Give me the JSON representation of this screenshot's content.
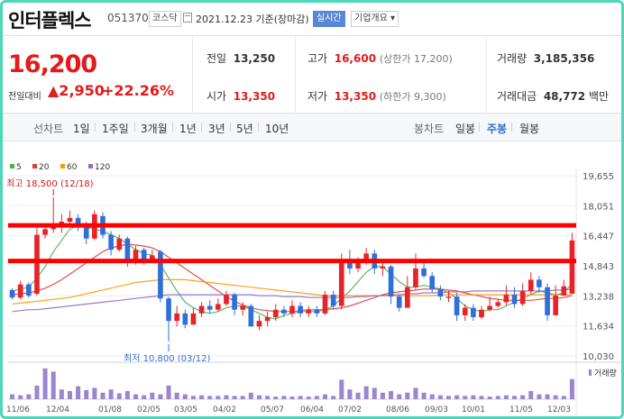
{
  "header": {
    "name": "인터플렉스",
    "code": "051370",
    "market": "코스닥",
    "date": "2021.12.23",
    "basis": "기준(장마감)",
    "realtime": "실시간",
    "overview": "기업개요 ▾"
  },
  "summary": {
    "price": "16,200",
    "change_label": "전일대비",
    "change": "▲2,950",
    "rate": "+22.26%",
    "prev_label": "전일",
    "prev": "13,250",
    "high_label": "고가",
    "high": "16,600",
    "upper_limit": "(상한가 17,200)",
    "volume_label": "거래량",
    "volume": "3,185,356",
    "open_label": "시가",
    "open": "13,350",
    "low_label": "저가",
    "low": "13,350",
    "lower_limit": "(하한가 9,300)",
    "amount_label": "거래대금",
    "amount": "48,772",
    "amount_unit": "백만"
  },
  "toolbar": {
    "line_label": "선차트",
    "periods": [
      "1일",
      "1주일",
      "3개월",
      "1년",
      "3년",
      "5년",
      "10년"
    ],
    "candle_label": "봉차트",
    "candle_options": [
      "일봉",
      "주봉",
      "월봉"
    ],
    "selected": "주봉"
  },
  "chart_data": {
    "type": "candlestick",
    "legend": [
      {
        "name": "5",
        "color": "#4caf50"
      },
      {
        "name": "20",
        "color": "#e53935"
      },
      {
        "name": "60",
        "color": "#ff9800"
      },
      {
        "name": "120",
        "color": "#8e6bc9"
      }
    ],
    "y_ticks": [
      "19,655",
      "18,051",
      "16,447",
      "14,843",
      "13,238",
      "11,634",
      "10,030"
    ],
    "ylim": [
      10030,
      19655
    ],
    "x_ticks": [
      "11/06",
      "12/04",
      "01/08",
      "02/05",
      "03/05",
      "04/02",
      "05/07",
      "06/04",
      "07/02",
      "08/06",
      "09/03",
      "10/01",
      "11/05",
      "12/03"
    ],
    "max_label": "최고 18,500 (12/18)",
    "min_label": "최저 10,800 (03/12)",
    "volume_label": "거래량",
    "resistance_lines": [
      17000,
      15100
    ],
    "candles": [
      [
        13550,
        13150,
        13650,
        13050
      ],
      [
        13150,
        13850,
        14050,
        13050
      ],
      [
        13850,
        13250,
        13950,
        13150
      ],
      [
        13350,
        16500,
        16900,
        13250
      ],
      [
        16500,
        16800,
        17050,
        16300
      ],
      [
        16800,
        17100,
        18500,
        16600
      ],
      [
        17100,
        17200,
        17600,
        16600
      ],
      [
        17200,
        17400,
        17800,
        16900
      ],
      [
        17400,
        16900,
        17600,
        16700
      ],
      [
        16900,
        16300,
        17200,
        16000
      ],
      [
        16300,
        17600,
        17800,
        16200
      ],
      [
        17500,
        16500,
        17700,
        16300
      ],
      [
        16500,
        15700,
        16700,
        15400
      ],
      [
        15700,
        16300,
        16500,
        15600
      ],
      [
        16300,
        15000,
        16400,
        14800
      ],
      [
        15000,
        15700,
        15900,
        14900
      ],
      [
        15700,
        15100,
        15800,
        14900
      ],
      [
        15100,
        15400,
        15700,
        15000
      ],
      [
        15600,
        13100,
        15700,
        12900
      ],
      [
        13100,
        11900,
        13200,
        10800
      ],
      [
        11900,
        12300,
        12700,
        11600
      ],
      [
        12300,
        11700,
        12500,
        11500
      ],
      [
        11700,
        12300,
        12600,
        11700
      ],
      [
        12300,
        12700,
        12900,
        12100
      ],
      [
        12700,
        12500,
        13000,
        12300
      ],
      [
        12500,
        12800,
        13100,
        12400
      ],
      [
        12800,
        13300,
        13500,
        12700
      ],
      [
        13300,
        12500,
        13400,
        12200
      ],
      [
        12500,
        12700,
        12900,
        12200
      ],
      [
        12700,
        11600,
        12800,
        11600
      ],
      [
        11600,
        11900,
        12200,
        11400
      ],
      [
        11900,
        12100,
        12400,
        11600
      ],
      [
        12100,
        12500,
        12800,
        11900
      ],
      [
        12500,
        12300,
        12700,
        12100
      ],
      [
        12300,
        12700,
        13000,
        12100
      ],
      [
        12700,
        12300,
        12900,
        12100
      ],
      [
        12300,
        12500,
        12700,
        12100
      ],
      [
        12500,
        12300,
        12700,
        12100
      ],
      [
        12300,
        13300,
        13500,
        12200
      ],
      [
        13300,
        12700,
        13500,
        12500
      ],
      [
        12700,
        15100,
        15500,
        12500
      ],
      [
        15100,
        14700,
        15700,
        14400
      ],
      [
        14700,
        15100,
        15300,
        14500
      ],
      [
        15100,
        15500,
        15800,
        14900
      ],
      [
        15500,
        14700,
        15700,
        14400
      ],
      [
        14700,
        14800,
        15000,
        14300
      ],
      [
        14800,
        13200,
        14900,
        12800
      ],
      [
        13200,
        12600,
        13300,
        12400
      ],
      [
        12600,
        13700,
        14300,
        12600
      ],
      [
        13700,
        14700,
        15500,
        13600
      ],
      [
        14700,
        14300,
        15100,
        14200
      ],
      [
        14300,
        13600,
        14500,
        13400
      ],
      [
        13600,
        13200,
        13800,
        13000
      ],
      [
        13200,
        13200,
        13500,
        12900
      ],
      [
        13200,
        12200,
        13400,
        11900
      ],
      [
        12200,
        12600,
        12800,
        11900
      ],
      [
        12600,
        12100,
        12800,
        11900
      ],
      [
        12100,
        12500,
        12700,
        12000
      ],
      [
        12500,
        12700,
        13200,
        12400
      ],
      [
        12700,
        12900,
        13100,
        12600
      ],
      [
        12900,
        13300,
        13800,
        12700
      ],
      [
        13300,
        12800,
        13700,
        12600
      ],
      [
        12800,
        13500,
        13900,
        12700
      ],
      [
        13500,
        14100,
        14500,
        13300
      ],
      [
        14100,
        13700,
        14300,
        13400
      ],
      [
        13700,
        12200,
        13900,
        11900
      ],
      [
        12200,
        13250,
        13800,
        12200
      ],
      [
        13250,
        13750,
        14100,
        13250
      ],
      [
        13350,
        16200,
        16600,
        13350
      ]
    ],
    "ma": {
      "5": [
        13500,
        13600,
        13700,
        14200,
        14800,
        15600,
        16200,
        16800,
        17000,
        16900,
        16800,
        16700,
        16500,
        16300,
        16000,
        15700,
        15500,
        15400,
        14900,
        14200,
        13500,
        12900,
        12600,
        12400,
        12300,
        12400,
        12600,
        12700,
        12700,
        12500,
        12300,
        12100,
        12000,
        12200,
        12300,
        12400,
        12400,
        12400,
        12500,
        12700,
        13100,
        13500,
        14000,
        14500,
        14800,
        14800,
        14400,
        14000,
        13700,
        13700,
        13800,
        13700,
        13600,
        13400,
        13100,
        12700,
        12500,
        12400,
        12500,
        12500,
        12700,
        12900,
        13100,
        13300,
        13500,
        13400,
        13300,
        13400,
        13900
      ],
      "20": [
        13300,
        13350,
        13400,
        13500,
        13650,
        13850,
        14100,
        14400,
        14700,
        15000,
        15300,
        15600,
        15800,
        15900,
        16000,
        15950,
        15900,
        15800,
        15600,
        15300,
        15000,
        14700,
        14400,
        14100,
        13800,
        13500,
        13200,
        12950,
        12750,
        12600,
        12500,
        12450,
        12400,
        12400,
        12400,
        12450,
        12500,
        12500,
        12500,
        12550,
        12600,
        12700,
        12850,
        13000,
        13150,
        13300,
        13400,
        13450,
        13500,
        13550,
        13600,
        13600,
        13600,
        13550,
        13500,
        13400,
        13300,
        13200,
        13100,
        13050,
        13000,
        13000,
        13000,
        13000,
        13050,
        13100,
        13100,
        13150,
        13250
      ],
      "60": [
        12800,
        12850,
        12900,
        12950,
        13000,
        13050,
        13100,
        13150,
        13250,
        13350,
        13450,
        13550,
        13650,
        13750,
        13850,
        13950,
        14000,
        14050,
        14100,
        14100,
        14100,
        14100,
        14050,
        14000,
        13950,
        13900,
        13850,
        13800,
        13750,
        13700,
        13650,
        13600,
        13550,
        13500,
        13450,
        13400,
        13350,
        13300,
        13250,
        13250,
        13250,
        13250,
        13250,
        13250,
        13250,
        13250,
        13250,
        13250,
        13250,
        13250,
        13250,
        13250,
        13300,
        13300,
        13300,
        13300,
        13300,
        13300,
        13300,
        13300,
        13300,
        13300,
        13300,
        13300,
        13300,
        13300,
        13300,
        13300,
        13300
      ],
      "120": [
        12400,
        12450,
        12500,
        12500,
        12550,
        12600,
        12650,
        12700,
        12750,
        12800,
        12850,
        12900,
        12950,
        13000,
        13050,
        13100,
        13150,
        13200,
        13250,
        13300,
        13300,
        13300,
        13300,
        13300,
        13300,
        13300,
        13300,
        13300,
        13300,
        13300,
        13250,
        13250,
        13250,
        13200,
        13200,
        13200,
        13150,
        13150,
        13150,
        13150,
        13150,
        13150,
        13200,
        13200,
        13250,
        13250,
        13300,
        13300,
        13350,
        13350,
        13400,
        13400,
        13400,
        13450,
        13450,
        13450,
        13500,
        13500,
        13500,
        13500,
        13500,
        13500,
        13500,
        13500,
        13500,
        13500,
        13550,
        13550,
        13600
      ]
    },
    "volume": [
      0.15,
      0.12,
      0.15,
      0.42,
      0.95,
      0.85,
      0.3,
      0.25,
      0.4,
      0.28,
      0.35,
      0.2,
      0.3,
      0.18,
      0.25,
      0.15,
      0.12,
      0.2,
      0.15,
      0.42,
      0.2,
      0.15,
      0.1,
      0.12,
      0.1,
      0.1,
      0.12,
      0.1,
      0.1,
      0.2,
      0.12,
      0.1,
      0.08,
      0.1,
      0.08,
      0.1,
      0.08,
      0.1,
      0.15,
      0.1,
      0.6,
      0.3,
      0.2,
      0.4,
      0.35,
      0.2,
      0.25,
      0.15,
      0.2,
      0.35,
      0.2,
      0.15,
      0.12,
      0.1,
      0.12,
      0.1,
      0.12,
      0.1,
      0.08,
      0.1,
      0.12,
      0.1,
      0.12,
      0.25,
      0.15,
      0.15,
      0.12,
      0.1,
      0.62
    ]
  }
}
